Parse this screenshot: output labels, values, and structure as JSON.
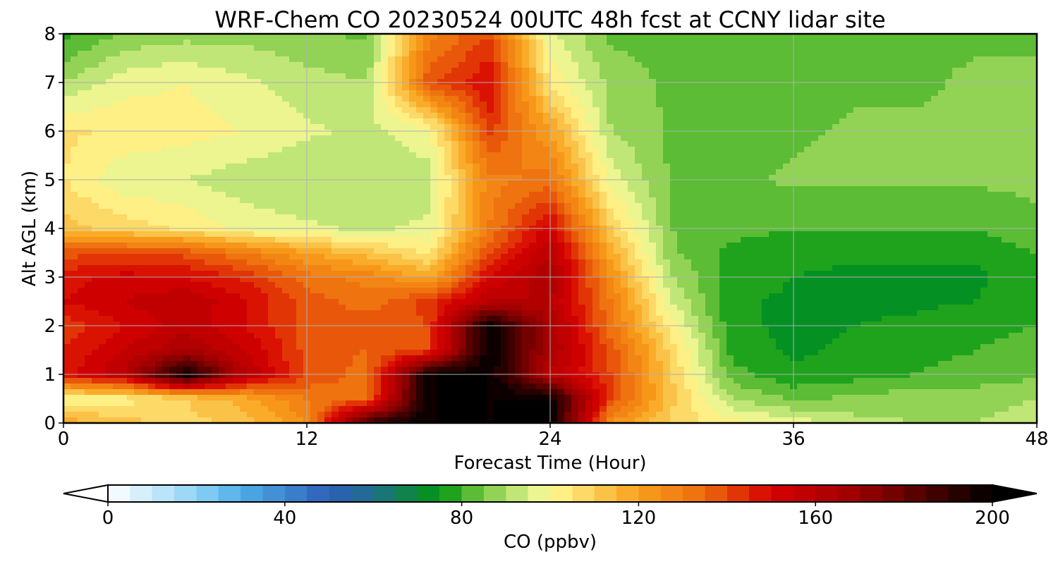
{
  "chart_data": {
    "type": "heatmap",
    "title": "WRF-Chem CO  20230524 00UTC 48h fcst at CCNY lidar site",
    "xlabel": "Forecast Time (Hour)",
    "ylabel": "Alt AGL (km)",
    "xlim": [
      0,
      48
    ],
    "ylim": [
      0,
      8
    ],
    "x_ticks": [
      0,
      12,
      24,
      36,
      48
    ],
    "y_ticks": [
      0,
      1,
      2,
      3,
      4,
      5,
      6,
      7,
      8
    ],
    "grid": true,
    "colorbar": {
      "label": "CO  (ppbv)",
      "min": 0,
      "max": 200,
      "ticks": [
        0,
        40,
        80,
        120,
        160,
        200
      ],
      "extend": "both",
      "stops": [
        {
          "value": 0,
          "color": "#ffffff"
        },
        {
          "value": 20,
          "color": "#8fd3f5"
        },
        {
          "value": 30,
          "color": "#4faee8"
        },
        {
          "value": 50,
          "color": "#2e5fb8"
        },
        {
          "value": 60,
          "color": "#1f6f8a"
        },
        {
          "value": 75,
          "color": "#00960f"
        },
        {
          "value": 85,
          "color": "#7ac943"
        },
        {
          "value": 95,
          "color": "#d8ef8a"
        },
        {
          "value": 100,
          "color": "#fffb94"
        },
        {
          "value": 120,
          "color": "#f9a01b"
        },
        {
          "value": 135,
          "color": "#ed6a0c"
        },
        {
          "value": 150,
          "color": "#d60000"
        },
        {
          "value": 170,
          "color": "#9a0000"
        },
        {
          "value": 200,
          "color": "#000000"
        }
      ]
    },
    "x": [
      0,
      3,
      6,
      9,
      12,
      15,
      18,
      21,
      24,
      27,
      30,
      33,
      36,
      39,
      42,
      45,
      48
    ],
    "y": [
      0,
      0.5,
      1,
      1.5,
      2,
      2.5,
      3,
      3.5,
      4,
      5,
      6,
      7,
      8
    ],
    "values": [
      [
        118,
        112,
        108,
        112,
        125,
        190,
        200,
        200,
        200,
        125,
        108,
        102,
        98,
        92,
        90,
        90,
        92
      ],
      [
        100,
        102,
        110,
        118,
        130,
        135,
        200,
        200,
        200,
        140,
        112,
        90,
        84,
        86,
        88,
        88,
        90
      ],
      [
        148,
        160,
        200,
        160,
        140,
        132,
        200,
        200,
        160,
        140,
        110,
        82,
        76,
        78,
        80,
        82,
        84
      ],
      [
        145,
        155,
        165,
        155,
        138,
        135,
        140,
        200,
        165,
        138,
        108,
        78,
        74,
        76,
        78,
        80,
        82
      ],
      [
        142,
        150,
        158,
        150,
        138,
        138,
        140,
        200,
        165,
        132,
        102,
        76,
        74,
        75,
        76,
        78,
        80
      ],
      [
        150,
        155,
        160,
        150,
        138,
        132,
        142,
        160,
        160,
        130,
        95,
        76,
        74,
        74,
        74,
        75,
        78
      ],
      [
        148,
        152,
        150,
        144,
        132,
        128,
        118,
        150,
        165,
        125,
        90,
        78,
        75,
        74,
        74,
        74,
        78
      ],
      [
        138,
        140,
        138,
        130,
        120,
        112,
        104,
        140,
        160,
        118,
        86,
        78,
        76,
        76,
        76,
        76,
        80
      ],
      [
        112,
        108,
        104,
        98,
        96,
        94,
        96,
        130,
        152,
        110,
        85,
        82,
        80,
        80,
        80,
        80,
        84
      ],
      [
        105,
        96,
        95,
        92,
        90,
        90,
        93,
        128,
        132,
        98,
        84,
        84,
        86,
        86,
        86,
        86,
        86
      ],
      [
        106,
        104,
        102,
        100,
        96,
        94,
        98,
        142,
        120,
        90,
        84,
        82,
        84,
        86,
        86,
        86,
        86
      ],
      [
        90,
        98,
        100,
        96,
        92,
        90,
        138,
        150,
        104,
        88,
        84,
        82,
        82,
        84,
        84,
        86,
        86
      ],
      [
        78,
        86,
        88,
        88,
        86,
        84,
        128,
        140,
        96,
        84,
        82,
        82,
        82,
        84,
        84,
        84,
        84
      ]
    ]
  }
}
